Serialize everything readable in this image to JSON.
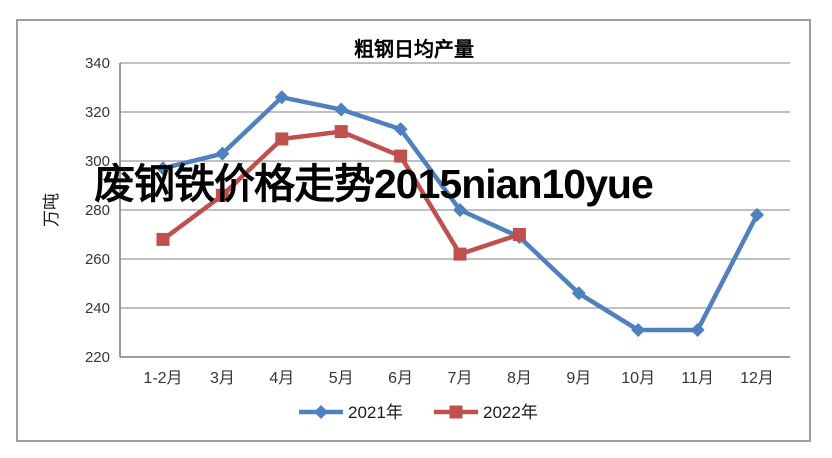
{
  "watermark": {
    "text": "废钢铁价格走势2015nian10yue",
    "color": "#030303"
  },
  "chart_data": {
    "type": "line",
    "title": "粗钢日均产量",
    "xlabel": "",
    "ylabel": "万吨",
    "categories": [
      "1-2月",
      "3月",
      "4月",
      "5月",
      "6月",
      "7月",
      "8月",
      "9月",
      "10月",
      "11月",
      "12月"
    ],
    "series": [
      {
        "name": "2021年",
        "color": "#4E81BD",
        "marker": "diamond",
        "values": [
          297,
          303,
          326,
          321,
          313,
          280,
          269,
          246,
          231,
          231,
          278
        ]
      },
      {
        "name": "2022年",
        "color": "#C0504D",
        "marker": "square",
        "values": [
          268,
          286,
          309,
          312,
          302,
          262,
          270,
          null,
          null,
          null,
          null
        ]
      }
    ],
    "ylim": [
      220,
      340
    ],
    "ytick_step": 20,
    "grid": true,
    "legend_position": "bottom",
    "colors": {
      "gridline": "#9a9a9a",
      "axis_line": "#7f7f7f",
      "tick_text": "#363636",
      "frame_border": "#9e9e9e"
    }
  }
}
